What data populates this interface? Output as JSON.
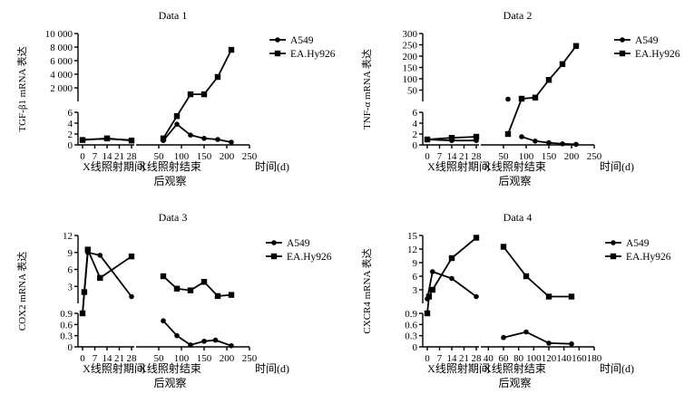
{
  "chart_data": [
    {
      "type": "line",
      "title": "Data 1",
      "ylabel": "TGF-β1 mRNA 表达",
      "xlabel_left": "X线照射期间",
      "xlabel_right": "X线照射结束后观察",
      "xunit": "时间(d)",
      "x_ticks_left": [
        "0",
        "7",
        "14",
        "21",
        "28"
      ],
      "x_ticks_right": [
        "50",
        "100",
        "150",
        "200",
        "250"
      ],
      "y_ticks_lower": [
        "0",
        "2",
        "4",
        "6"
      ],
      "y_ticks_upper": [
        "2 000",
        "4 000",
        "6 000",
        "8 000",
        "10 000"
      ],
      "lower_ylim": [
        0,
        6
      ],
      "upper_ylim": [
        0,
        10000
      ],
      "legend": [
        "A549",
        "EA.Hy926"
      ],
      "series": [
        {
          "name": "A549",
          "marker": "circle",
          "segments": [
            [
              [
                0,
                1
              ],
              [
                14,
                1.1
              ],
              [
                28,
                0.9
              ]
            ],
            [
              [
                60,
                0.8
              ],
              [
                90,
                3.8
              ],
              [
                120,
                1.8
              ],
              [
                150,
                1.2
              ],
              [
                180,
                1.0
              ],
              [
                210,
                0.5
              ]
            ]
          ]
        },
        {
          "name": "EA.Hy926",
          "marker": "square",
          "segments": [
            [
              [
                0,
                0.9
              ],
              [
                14,
                1.2
              ],
              [
                28,
                0.8
              ]
            ],
            [
              [
                60,
                1.2
              ],
              [
                90,
                5.3
              ],
              [
                120,
                {
                  "upper": 1050
                }
              ],
              [
                150,
                {
                  "upper": 1050
                }
              ],
              [
                180,
                {
                  "upper": 3600
                }
              ],
              [
                210,
                {
                  "upper": 7600
                }
              ]
            ]
          ]
        }
      ]
    },
    {
      "type": "line",
      "title": "Data 2",
      "ylabel": "TNF-α mRNA 表达",
      "xlabel_left": "X线照射期间",
      "xlabel_right": "X线照射结束后观察",
      "xunit": "时间(d)",
      "x_ticks_left": [
        "0",
        "7",
        "14",
        "21",
        "28"
      ],
      "x_ticks_right": [
        "50",
        "100",
        "150",
        "200",
        "250"
      ],
      "y_ticks_lower": [
        "0",
        "2",
        "4",
        "6"
      ],
      "y_ticks_upper": [
        "50",
        "100",
        "150",
        "200",
        "250",
        "300"
      ],
      "lower_ylim": [
        0,
        6
      ],
      "upper_ylim": [
        0,
        300
      ],
      "legend": [
        "A549",
        "EA.Hy926"
      ],
      "series": [
        {
          "name": "A549",
          "marker": "circle",
          "segments": [
            [
              [
                0,
                1
              ],
              [
                14,
                0.8
              ],
              [
                28,
                0.8
              ]
            ],
            [
              [
                60,
                {
                  "upper": 10
                }
              ]
            ],
            [
              [
                90,
                1.5
              ],
              [
                120,
                0.7
              ],
              [
                150,
                0.4
              ],
              [
                180,
                0.2
              ],
              [
                210,
                0.1
              ]
            ]
          ]
        },
        {
          "name": "EA.Hy926",
          "marker": "square",
          "segments": [
            [
              [
                0,
                1
              ],
              [
                14,
                1.3
              ],
              [
                28,
                1.5
              ]
            ],
            [
              [
                60,
                2.0
              ],
              [
                90,
                {
                  "upper": 12
                }
              ],
              [
                120,
                {
                  "upper": 17
                }
              ],
              [
                150,
                {
                  "upper": 95
                }
              ],
              [
                180,
                {
                  "upper": 165
                }
              ],
              [
                210,
                {
                  "upper": 245
                }
              ]
            ]
          ]
        }
      ]
    },
    {
      "type": "line",
      "title": "Data 3",
      "ylabel": "COX2 mRNA 表达",
      "xlabel_left": "X线照射期间",
      "xlabel_right": "X线照射结束后观察",
      "xunit": "时间(d)",
      "x_ticks_left": [
        "0",
        "7",
        "14",
        "21",
        "28"
      ],
      "x_ticks_right": [
        "50",
        "100",
        "150",
        "200",
        "250"
      ],
      "y_ticks_lower": [
        "0",
        "0.3",
        "0.6",
        "0.9"
      ],
      "y_ticks_upper": [
        "3",
        "6",
        "9",
        "12"
      ],
      "lower_ylim": [
        0,
        0.9
      ],
      "upper_ylim": [
        0,
        12
      ],
      "legend": [
        "A549",
        "EA.Hy926"
      ],
      "series": [
        {
          "name": "A549",
          "marker": "circle",
          "segments": [
            [
              [
                0,
                0.9
              ],
              [
                3,
                {
                  "upper": 9
                }
              ],
              [
                10,
                {
                  "upper": 8.5
                }
              ],
              [
                28,
                {
                  "upper": 1.2
                }
              ]
            ],
            [
              [
                60,
                0.7
              ],
              [
                90,
                0.3
              ],
              [
                120,
                0.05
              ],
              [
                150,
                0.15
              ],
              [
                175,
                0.18
              ],
              [
                210,
                0.03
              ]
            ]
          ]
        },
        {
          "name": "EA.Hy926",
          "marker": "square",
          "segments": [
            [
              [
                0,
                0.9
              ],
              [
                1,
                {
                  "upper": 2
                }
              ],
              [
                3,
                {
                  "upper": 9.5
                }
              ],
              [
                10,
                {
                  "upper": 4.5
                }
              ],
              [
                28,
                {
                  "upper": 8.3
                }
              ]
            ],
            [
              [
                60,
                {
                  "upper": 4.8
                }
              ],
              [
                90,
                {
                  "upper": 2.6
                }
              ],
              [
                120,
                {
                  "upper": 2.3
                }
              ],
              [
                150,
                {
                  "upper": 3.8
                }
              ],
              [
                180,
                {
                  "upper": 1.3
                }
              ],
              [
                210,
                {
                  "upper": 1.5
                }
              ]
            ]
          ]
        }
      ]
    },
    {
      "type": "line",
      "title": "Data 4",
      "ylabel": "CXCR4 mRNA 表达",
      "xlabel_left": "X线照射期间",
      "xlabel_right": "X线照射结束后观察",
      "xunit": "时间(d)",
      "x_ticks_left": [
        "0",
        "7",
        "14",
        "21",
        "28"
      ],
      "x_ticks_right": [
        "40",
        "60",
        "80",
        "100",
        "120",
        "140",
        "160",
        "180"
      ],
      "y_ticks_lower": [
        "0",
        "0.3",
        "0.6",
        "0.9"
      ],
      "y_ticks_upper": [
        "3",
        "6",
        "9",
        "12",
        "15"
      ],
      "lower_ylim": [
        0,
        0.9
      ],
      "upper_ylim": [
        0,
        15
      ],
      "legend": [
        "A549",
        "EA.Hy926"
      ],
      "series": [
        {
          "name": "A549",
          "marker": "circle",
          "segments": [
            [
              [
                0,
                {
                  "upper": 1
                }
              ],
              [
                3,
                {
                  "upper": 7
                }
              ],
              [
                14,
                {
                  "upper": 5.5
                }
              ],
              [
                28,
                {
                  "upper": 1.5
                }
              ]
            ],
            [
              [
                60,
                0.25
              ],
              [
                90,
                0.4
              ],
              [
                120,
                0.1
              ],
              [
                150,
                0.08
              ]
            ]
          ]
        },
        {
          "name": "EA.Hy926",
          "marker": "square",
          "segments": [
            [
              [
                0,
                0.9
              ],
              [
                1,
                {
                  "upper": 1.5
                }
              ],
              [
                3,
                {
                  "upper": 3
                }
              ],
              [
                14,
                {
                  "upper": 10
                }
              ],
              [
                28,
                {
                  "upper": 14.5
                }
              ]
            ],
            [
              [
                60,
                {
                  "upper": 12.5
                }
              ],
              [
                90,
                {
                  "upper": 6
                }
              ],
              [
                120,
                {
                  "upper": 1.5
                }
              ],
              [
                150,
                {
                  "upper": 1.5
                }
              ]
            ]
          ]
        }
      ]
    }
  ]
}
